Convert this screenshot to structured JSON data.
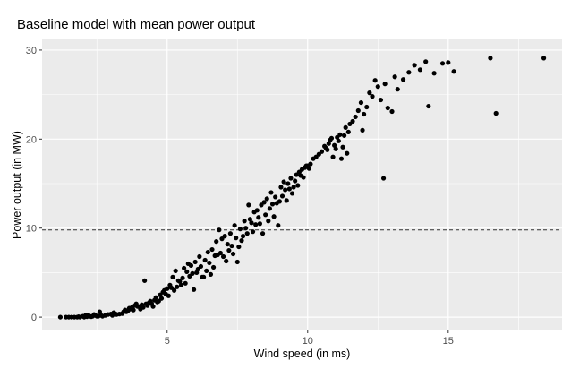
{
  "chart_data": {
    "type": "scatter",
    "title": "Baseline model with mean power output",
    "xlabel": "Wind speed (in ms)",
    "ylabel": "Power output (in MW)",
    "xlim": [
      0.55,
      19.05
    ],
    "ylim": [
      -1.5,
      31.2
    ],
    "x_ticks": [
      5,
      10,
      15
    ],
    "y_ticks": [
      0,
      10,
      20,
      30
    ],
    "grid": true,
    "background": "#ebebeb",
    "grid_color": "#ffffff",
    "point_color": "#000000",
    "reference_line": {
      "y": 9.8,
      "style": "dashed",
      "label": ""
    },
    "points": [
      [
        1.2,
        0
      ],
      [
        1.4,
        0
      ],
      [
        1.5,
        0
      ],
      [
        1.6,
        0
      ],
      [
        1.7,
        0
      ],
      [
        1.8,
        0
      ],
      [
        1.85,
        0.05
      ],
      [
        1.9,
        0
      ],
      [
        2.0,
        0.1
      ],
      [
        2.05,
        0
      ],
      [
        2.1,
        0.2
      ],
      [
        2.15,
        0.05
      ],
      [
        2.2,
        0.2
      ],
      [
        2.25,
        0.1
      ],
      [
        2.3,
        0.05
      ],
      [
        2.35,
        0.1
      ],
      [
        2.4,
        0.3
      ],
      [
        2.45,
        0.2
      ],
      [
        2.5,
        0.1
      ],
      [
        2.55,
        0.1
      ],
      [
        2.6,
        0.6
      ],
      [
        2.65,
        0.2
      ],
      [
        2.7,
        0.1
      ],
      [
        2.8,
        0.2
      ],
      [
        2.9,
        0.3
      ],
      [
        3.0,
        0.35
      ],
      [
        3.05,
        0.2
      ],
      [
        3.1,
        0.5
      ],
      [
        3.15,
        0.4
      ],
      [
        3.2,
        0.3
      ],
      [
        3.3,
        0.35
      ],
      [
        3.4,
        0.4
      ],
      [
        3.45,
        0.6
      ],
      [
        3.5,
        0.8
      ],
      [
        3.55,
        0.6
      ],
      [
        3.6,
        0.7
      ],
      [
        3.65,
        1.0
      ],
      [
        3.7,
        0.9
      ],
      [
        3.75,
        1.1
      ],
      [
        3.8,
        0.8
      ],
      [
        3.85,
        1.3
      ],
      [
        3.9,
        1.5
      ],
      [
        3.95,
        1.2
      ],
      [
        4.0,
        1.2
      ],
      [
        4.05,
        0.9
      ],
      [
        4.1,
        1.4
      ],
      [
        4.15,
        1.1
      ],
      [
        4.2,
        4.1
      ],
      [
        4.25,
        1.5
      ],
      [
        4.3,
        1.3
      ],
      [
        4.35,
        1.6
      ],
      [
        4.4,
        1.8
      ],
      [
        4.45,
        1.5
      ],
      [
        4.5,
        1.2
      ],
      [
        4.55,
        1.9
      ],
      [
        4.6,
        2.2
      ],
      [
        4.65,
        1.7
      ],
      [
        4.7,
        1.8
      ],
      [
        4.75,
        2.5
      ],
      [
        4.8,
        2.1
      ],
      [
        4.85,
        2.8
      ],
      [
        4.9,
        3.0
      ],
      [
        4.95,
        2.6
      ],
      [
        5.0,
        3.2
      ],
      [
        5.05,
        2.4
      ],
      [
        5.1,
        3.6
      ],
      [
        5.15,
        3.3
      ],
      [
        5.2,
        4.5
      ],
      [
        5.25,
        3.0
      ],
      [
        5.3,
        5.2
      ],
      [
        5.35,
        3.4
      ],
      [
        5.4,
        4.1
      ],
      [
        5.45,
        4.0
      ],
      [
        5.5,
        3.6
      ],
      [
        5.55,
        4.4
      ],
      [
        5.6,
        5.5
      ],
      [
        5.65,
        3.8
      ],
      [
        5.7,
        5.1
      ],
      [
        5.75,
        6.0
      ],
      [
        5.8,
        4.6
      ],
      [
        5.85,
        5.8
      ],
      [
        5.9,
        4.9
      ],
      [
        5.95,
        3.1
      ],
      [
        6.0,
        6.2
      ],
      [
        6.05,
        5.0
      ],
      [
        6.1,
        5.4
      ],
      [
        6.15,
        6.8
      ],
      [
        6.2,
        5.7
      ],
      [
        6.25,
        4.5
      ],
      [
        6.3,
        4.5
      ],
      [
        6.35,
        6.4
      ],
      [
        6.4,
        5.2
      ],
      [
        6.45,
        7.3
      ],
      [
        6.5,
        6.1
      ],
      [
        6.55,
        4.8
      ],
      [
        6.6,
        7.6
      ],
      [
        6.65,
        5.6
      ],
      [
        6.7,
        6.9
      ],
      [
        6.75,
        8.5
      ],
      [
        6.8,
        7.0
      ],
      [
        6.85,
        9.8
      ],
      [
        6.9,
        7.2
      ],
      [
        6.95,
        8.8
      ],
      [
        7.0,
        6.8
      ],
      [
        7.05,
        9.1
      ],
      [
        7.1,
        6.3
      ],
      [
        7.15,
        8.2
      ],
      [
        7.2,
        7.5
      ],
      [
        7.25,
        9.4
      ],
      [
        7.3,
        8.0
      ],
      [
        7.35,
        7.1
      ],
      [
        7.4,
        10.3
      ],
      [
        7.45,
        8.9
      ],
      [
        7.5,
        6.2
      ],
      [
        7.55,
        7.9
      ],
      [
        7.6,
        9.9
      ],
      [
        7.65,
        8.6
      ],
      [
        7.7,
        9.1
      ],
      [
        7.75,
        10.8
      ],
      [
        7.8,
        10.0
      ],
      [
        7.85,
        9.4
      ],
      [
        7.9,
        12.6
      ],
      [
        7.95,
        11.0
      ],
      [
        8.0,
        10.6
      ],
      [
        8.05,
        9.6
      ],
      [
        8.1,
        11.8
      ],
      [
        8.15,
        10.4
      ],
      [
        8.2,
        12.0
      ],
      [
        8.25,
        11.2
      ],
      [
        8.3,
        10.5
      ],
      [
        8.35,
        12.6
      ],
      [
        8.4,
        9.4
      ],
      [
        8.45,
        12.9
      ],
      [
        8.5,
        11.5
      ],
      [
        8.55,
        13.3
      ],
      [
        8.6,
        10.8
      ],
      [
        8.65,
        12.2
      ],
      [
        8.7,
        14.0
      ],
      [
        8.75,
        12.7
      ],
      [
        8.8,
        11.3
      ],
      [
        8.85,
        13.5
      ],
      [
        8.9,
        12.8
      ],
      [
        8.95,
        10.3
      ],
      [
        9.0,
        13.0
      ],
      [
        9.05,
        14.6
      ],
      [
        9.1,
        13.6
      ],
      [
        9.15,
        15.2
      ],
      [
        9.2,
        14.3
      ],
      [
        9.25,
        13.1
      ],
      [
        9.3,
        15.0
      ],
      [
        9.35,
        14.4
      ],
      [
        9.4,
        15.6
      ],
      [
        9.45,
        13.9
      ],
      [
        9.5,
        14.6
      ],
      [
        9.55,
        15.3
      ],
      [
        9.6,
        16.0
      ],
      [
        9.65,
        14.8
      ],
      [
        9.7,
        16.3
      ],
      [
        9.75,
        15.9
      ],
      [
        9.8,
        16.6
      ],
      [
        9.85,
        15.7
      ],
      [
        9.9,
        16.8
      ],
      [
        9.95,
        17.0
      ],
      [
        10.0,
        17.0
      ],
      [
        10.05,
        16.7
      ],
      [
        10.1,
        17.2
      ],
      [
        10.2,
        17.8
      ],
      [
        10.3,
        18.0
      ],
      [
        10.4,
        18.3
      ],
      [
        10.5,
        18.6
      ],
      [
        10.6,
        19.2
      ],
      [
        10.65,
        19.0
      ],
      [
        10.7,
        18.8
      ],
      [
        10.75,
        19.5
      ],
      [
        10.8,
        19.9
      ],
      [
        10.85,
        20.1
      ],
      [
        10.9,
        18.0
      ],
      [
        10.95,
        19.3
      ],
      [
        11.0,
        18.9
      ],
      [
        11.05,
        20.2
      ],
      [
        11.1,
        19.8
      ],
      [
        11.15,
        20.5
      ],
      [
        11.2,
        17.8
      ],
      [
        11.25,
        19.1
      ],
      [
        11.3,
        20.4
      ],
      [
        11.35,
        21.3
      ],
      [
        11.4,
        18.4
      ],
      [
        11.45,
        20.8
      ],
      [
        11.5,
        21.7
      ],
      [
        11.6,
        22.0
      ],
      [
        11.7,
        22.5
      ],
      [
        11.8,
        23.2
      ],
      [
        11.9,
        24.1
      ],
      [
        11.95,
        21.0
      ],
      [
        12.0,
        22.8
      ],
      [
        12.1,
        23.6
      ],
      [
        12.2,
        25.2
      ],
      [
        12.3,
        24.8
      ],
      [
        12.4,
        26.6
      ],
      [
        12.5,
        25.9
      ],
      [
        12.6,
        24.4
      ],
      [
        12.7,
        15.6
      ],
      [
        12.75,
        26.2
      ],
      [
        12.85,
        23.5
      ],
      [
        13.0,
        23.1
      ],
      [
        13.1,
        27.0
      ],
      [
        13.2,
        25.6
      ],
      [
        13.4,
        26.7
      ],
      [
        13.6,
        27.5
      ],
      [
        13.8,
        28.3
      ],
      [
        14.0,
        27.8
      ],
      [
        14.2,
        28.7
      ],
      [
        14.3,
        23.7
      ],
      [
        14.5,
        27.4
      ],
      [
        14.8,
        28.5
      ],
      [
        15.0,
        28.6
      ],
      [
        15.2,
        27.6
      ],
      [
        16.5,
        29.1
      ],
      [
        16.7,
        22.9
      ],
      [
        18.4,
        29.1
      ]
    ]
  }
}
